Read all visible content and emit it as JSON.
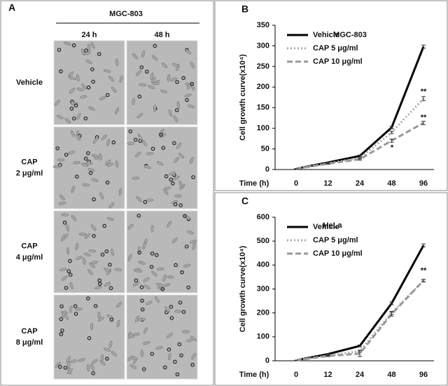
{
  "panel_a": {
    "label": "A",
    "title": "MGC-803",
    "columns": [
      "24 h",
      "48 h"
    ],
    "rows": [
      [
        "Vehicle"
      ],
      [
        "CAP",
        "2 μg/ml"
      ],
      [
        "CAP",
        "4 μg/ml"
      ],
      [
        "CAP",
        "8 μg/ml"
      ]
    ]
  },
  "chart_data": [
    {
      "type": "line",
      "label": "B",
      "title": "MGC-803",
      "y_label": "Cell growth curve(x10⁴)",
      "x_label": "Time (h)",
      "categories": [
        "0",
        "12",
        "24",
        "48",
        "96"
      ],
      "ylim": [
        0,
        350
      ],
      "yticks": [
        0,
        50,
        100,
        150,
        200,
        250,
        300,
        350
      ],
      "legend": "upper-left",
      "series": [
        {
          "name": "Vehicle",
          "color": "#000000",
          "style": "solid",
          "values": [
            2,
            17,
            33,
            102,
            298
          ],
          "errors": [
            0,
            1,
            2,
            3,
            4
          ]
        },
        {
          "name": "CAP 5 μg/ml",
          "color": "#aaaaaa",
          "style": "dotted",
          "values": [
            2,
            15,
            28,
            90,
            172
          ],
          "errors": [
            0,
            1,
            2,
            3,
            5
          ]
        },
        {
          "name": "CAP 10 μg/ml",
          "color": "#999999",
          "style": "dashed",
          "values": [
            2,
            14,
            25,
            70,
            113
          ],
          "errors": [
            0,
            1,
            2,
            4,
            4
          ]
        }
      ],
      "annotations": [
        "**",
        "**",
        "*"
      ]
    },
    {
      "type": "line",
      "label": "C",
      "title": "HeLa",
      "y_label": "Cell growth curve(x10⁴)",
      "x_label": "Time (h)",
      "categories": [
        "0",
        "12",
        "24",
        "48",
        "96"
      ],
      "ylim": [
        0,
        600
      ],
      "yticks": [
        0,
        100,
        200,
        300,
        400,
        500,
        600
      ],
      "legend": "upper-left",
      "series": [
        {
          "name": "Vehicle",
          "color": "#000000",
          "style": "solid",
          "values": [
            2,
            28,
            62,
            240,
            482
          ],
          "errors": [
            0,
            2,
            4,
            6,
            6
          ]
        },
        {
          "name": "CAP 5 μg/ml",
          "color": "#aaaaaa",
          "style": "dotted",
          "values": [
            2,
            22,
            40,
            200,
            335
          ],
          "errors": [
            0,
            2,
            4,
            6,
            5
          ]
        },
        {
          "name": "CAP 10 μg/ml",
          "color": "#999999",
          "style": "dashed",
          "values": [
            2,
            20,
            30,
            195,
            335
          ],
          "errors": [
            0,
            2,
            12,
            8,
            5
          ]
        }
      ],
      "annotations": [
        "**"
      ]
    }
  ]
}
